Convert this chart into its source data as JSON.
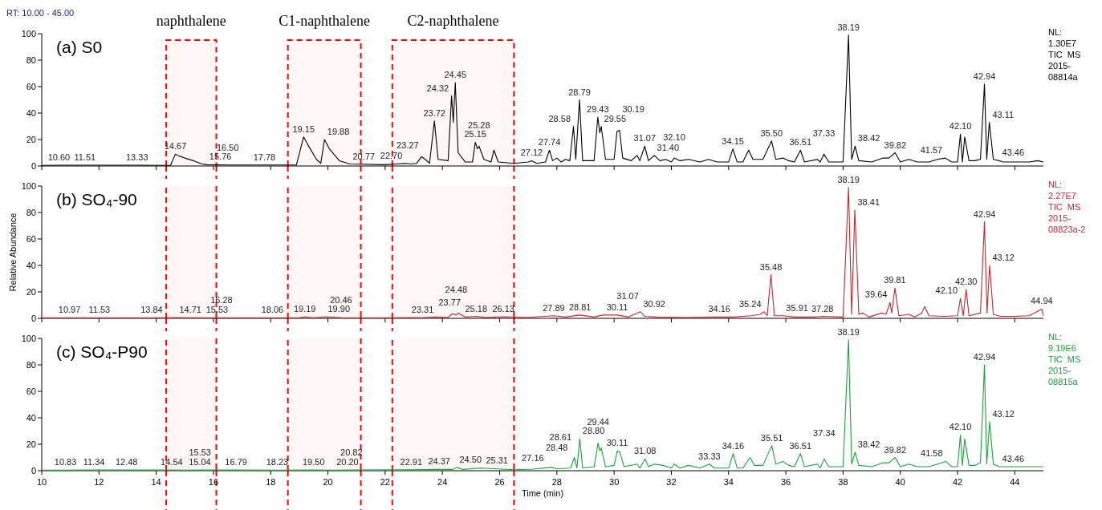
{
  "chart_data": [
    {
      "type": "line",
      "title": "(a) S0",
      "annotations": [
        "RT: 10.00 - 45.00",
        "NL:\n1.30E7\nTIC  MS\n2015-\n08814a",
        {
          "text": "10.60",
          "x": 10.6,
          "y": 0.6
        },
        {
          "text": "11.51",
          "x": 11.51,
          "y": 0.6
        },
        {
          "text": "13.33",
          "x": 13.33,
          "y": 0.6
        },
        {
          "text": "14.67",
          "x": 14.67,
          "y": 9
        },
        {
          "text": "15.76",
          "x": 15.76,
          "y": 1
        },
        {
          "text": "16.50",
          "x": 16.5,
          "y": 0.8
        },
        {
          "text": "17.78",
          "x": 17.78,
          "y": 0.8
        },
        {
          "text": "19.15",
          "x": 19.15,
          "y": 22
        },
        {
          "text": "19.88",
          "x": 19.88,
          "y": 20
        },
        {
          "text": "20.77",
          "x": 20.77,
          "y": 1.5
        },
        {
          "text": "22.70",
          "x": 22.7,
          "y": 2
        },
        {
          "text": "23.27",
          "x": 23.27,
          "y": 7
        },
        {
          "text": "23.72",
          "x": 23.72,
          "y": 34
        },
        {
          "text": "24.32",
          "x": 24.32,
          "y": 53
        },
        {
          "text": "24.45",
          "x": 24.45,
          "y": 63
        },
        {
          "text": "25.15",
          "x": 25.15,
          "y": 18
        },
        {
          "text": "25.28",
          "x": 25.28,
          "y": 15
        },
        {
          "text": "27.12",
          "x": 27.12,
          "y": 4
        },
        {
          "text": "27.74",
          "x": 27.74,
          "y": 12
        },
        {
          "text": "28.58",
          "x": 28.58,
          "y": 30
        },
        {
          "text": "28.79",
          "x": 28.79,
          "y": 50
        },
        {
          "text": "29.43",
          "x": 29.43,
          "y": 37
        },
        {
          "text": "29.55",
          "x": 29.55,
          "y": 30
        },
        {
          "text": "30.19",
          "x": 30.19,
          "y": 27
        },
        {
          "text": "31.07",
          "x": 31.07,
          "y": 15
        },
        {
          "text": "31.40",
          "x": 31.4,
          "y": 8
        },
        {
          "text": "32.10",
          "x": 32.1,
          "y": 6
        },
        {
          "text": "34.15",
          "x": 34.15,
          "y": 13
        },
        {
          "text": "35.50",
          "x": 35.5,
          "y": 19
        },
        {
          "text": "36.51",
          "x": 36.51,
          "y": 12
        },
        {
          "text": "37.33",
          "x": 37.33,
          "y": 9
        },
        {
          "text": "38.19",
          "x": 38.19,
          "y": 99
        },
        {
          "text": "38.42",
          "x": 38.42,
          "y": 15
        },
        {
          "text": "39.82",
          "x": 39.82,
          "y": 10
        },
        {
          "text": "41.57",
          "x": 41.57,
          "y": 6
        },
        {
          "text": "42.10",
          "x": 42.1,
          "y": 24
        },
        {
          "text": "42.94",
          "x": 42.94,
          "y": 62
        },
        {
          "text": "43.11",
          "x": 43.11,
          "y": 33
        },
        {
          "text": "43.46",
          "x": 43.46,
          "y": 4
        }
      ],
      "xlim": [
        10,
        45
      ],
      "xticks": [
        10,
        12,
        14,
        16,
        18,
        20,
        22,
        24,
        26,
        28,
        30,
        32,
        34,
        36,
        38,
        40,
        42,
        44
      ],
      "ylim": [
        0,
        100
      ],
      "yticks": [
        0,
        20,
        40,
        60,
        80,
        100
      ],
      "tick_labels": "y",
      "bands": [
        {
          "axis": "x",
          "from": 14.35,
          "to": 16.1,
          "label": "naphthalene",
          "color": "#ff0000"
        },
        {
          "axis": "x",
          "from": 18.6,
          "to": 21.15,
          "label": "C1-naphthalene",
          "color": "#ff0000"
        },
        {
          "axis": "x",
          "from": 22.25,
          "to": 26.5,
          "label": "C2-naphthalene",
          "color": "#ff0000"
        }
      ],
      "x": [
        10,
        10.6,
        11.51,
        13.33,
        14.5,
        14.67,
        14.8,
        15,
        15.3,
        15.6,
        15.76,
        16.5,
        17.78,
        18.9,
        19.15,
        19.3,
        19.6,
        19.75,
        19.88,
        20.05,
        20.4,
        20.77,
        22,
        22.7,
        22.9,
        23.1,
        23.27,
        23.4,
        23.55,
        23.72,
        23.85,
        24.2,
        24.32,
        24.38,
        24.45,
        24.55,
        24.8,
        25.05,
        25.15,
        25.22,
        25.28,
        25.45,
        25.7,
        25.8,
        25.95,
        26.5,
        27,
        27.12,
        27.3,
        27.6,
        27.74,
        27.85,
        28,
        28.15,
        28.3,
        28.45,
        28.58,
        28.66,
        28.79,
        28.9,
        29.3,
        29.43,
        29.5,
        29.55,
        29.7,
        30,
        30.1,
        30.19,
        30.3,
        30.6,
        30.8,
        30.9,
        31.07,
        31.2,
        31.4,
        31.6,
        31.8,
        32,
        32.1,
        32.3,
        32.6,
        33,
        33.3,
        33.6,
        34,
        34.15,
        34.3,
        34.5,
        34.7,
        34.85,
        35.2,
        35.5,
        35.65,
        35.9,
        36.1,
        36.3,
        36.51,
        36.65,
        37.1,
        37.2,
        37.33,
        37.5,
        38,
        38.19,
        38.3,
        38.42,
        38.55,
        39,
        39.4,
        39.6,
        39.82,
        40,
        40.3,
        40.6,
        41,
        41.3,
        41.57,
        41.8,
        42,
        42.1,
        42.17,
        42.25,
        42.4,
        42.6,
        42.8,
        42.94,
        43.02,
        43.11,
        43.25,
        43.46,
        43.6,
        44,
        44.5,
        44.8,
        45
      ],
      "series": [
        {
          "color": "#000000",
          "values": [
            0.5,
            0.6,
            0.6,
            0.6,
            0.5,
            9,
            7.5,
            6,
            4,
            1.5,
            1,
            0.8,
            0.8,
            0.8,
            22,
            16,
            5,
            2,
            20,
            13,
            4,
            1.5,
            1,
            2,
            1.5,
            2,
            7,
            5,
            2,
            34,
            5,
            4,
            53,
            33,
            63,
            10,
            3,
            3,
            18,
            13,
            15,
            5,
            3,
            12,
            3,
            2,
            3,
            4,
            2,
            3,
            12,
            4,
            6,
            3,
            5,
            4,
            30,
            5,
            50,
            4,
            4,
            37,
            25,
            30,
            5,
            5,
            26,
            27,
            6,
            4,
            8,
            4,
            15,
            4,
            8,
            4,
            5,
            3,
            6,
            4,
            5,
            3,
            5,
            3,
            3,
            13,
            3,
            3,
            12,
            5,
            5,
            19,
            5,
            6,
            4,
            3,
            12,
            3,
            5,
            3,
            9,
            3,
            3,
            99,
            5,
            15,
            4,
            3,
            6,
            6,
            10,
            3,
            5,
            3,
            3,
            5,
            6,
            3,
            3,
            24,
            3,
            22,
            4,
            4,
            5,
            62,
            5,
            33,
            5,
            4,
            3,
            3,
            3,
            4,
            3
          ]
        }
      ]
    },
    {
      "type": "line",
      "title": "(b) SO₄-90",
      "ylabel": "Relative Abundance",
      "annotations": [
        "NL:\n2.27E7\nTIC  MS\n2015-\n08823a-2",
        {
          "text": "10.97",
          "x": 10.97,
          "y": 0.5
        },
        {
          "text": "11.53",
          "x": 11.53,
          "y": 0.5
        },
        {
          "text": "13.84",
          "x": 13.84,
          "y": 0.5
        },
        {
          "text": "14.71",
          "x": 14.71,
          "y": 0.6
        },
        {
          "text": "15.53",
          "x": 15.53,
          "y": 0.5
        },
        {
          "text": "16.28",
          "x": 16.28,
          "y": 0.5
        },
        {
          "text": "18.06",
          "x": 18.06,
          "y": 0.5
        },
        {
          "text": "19.19",
          "x": 19.19,
          "y": 1.2
        },
        {
          "text": "19.90",
          "x": 19.9,
          "y": 1.2
        },
        {
          "text": "20.46",
          "x": 20.46,
          "y": 0.6
        },
        {
          "text": "23.31",
          "x": 23.31,
          "y": 0.6
        },
        {
          "text": "23.77",
          "x": 23.77,
          "y": 1
        },
        {
          "text": "24.48",
          "x": 24.48,
          "y": 2.5
        },
        {
          "text": "25.18",
          "x": 25.18,
          "y": 1.5
        },
        {
          "text": "26.13",
          "x": 26.13,
          "y": 1.2
        },
        {
          "text": "27.89",
          "x": 27.89,
          "y": 2
        },
        {
          "text": "28.81",
          "x": 28.81,
          "y": 2.5
        },
        {
          "text": "30.11",
          "x": 30.11,
          "y": 2.5
        },
        {
          "text": "30.92",
          "x": 30.92,
          "y": 5
        },
        {
          "text": "31.07",
          "x": 31.07,
          "y": 1.5
        },
        {
          "text": "34.16",
          "x": 34.16,
          "y": 1
        },
        {
          "text": "35.24",
          "x": 35.24,
          "y": 5
        },
        {
          "text": "35.48",
          "x": 35.48,
          "y": 33
        },
        {
          "text": "35.91",
          "x": 35.91,
          "y": 2
        },
        {
          "text": "37.28",
          "x": 37.28,
          "y": 1.5
        },
        {
          "text": "38.19",
          "x": 38.19,
          "y": 99
        },
        {
          "text": "38.41",
          "x": 38.41,
          "y": 82
        },
        {
          "text": "39.64",
          "x": 39.64,
          "y": 12
        },
        {
          "text": "39.81",
          "x": 39.81,
          "y": 23
        },
        {
          "text": "42.10",
          "x": 42.1,
          "y": 15
        },
        {
          "text": "42.30",
          "x": 42.3,
          "y": 22
        },
        {
          "text": "42.94",
          "x": 42.94,
          "y": 73
        },
        {
          "text": "43.12",
          "x": 43.12,
          "y": 40
        },
        {
          "text": "44.94",
          "x": 44.94,
          "y": 7
        }
      ],
      "xlim": [
        10,
        45
      ],
      "xticks": [
        10,
        12,
        14,
        16,
        18,
        20,
        22,
        24,
        26,
        28,
        30,
        32,
        34,
        36,
        38,
        40,
        42,
        44
      ],
      "ylim": [
        0,
        100
      ],
      "yticks": [
        0,
        20,
        40,
        60,
        80,
        100
      ],
      "tick_labels": "y",
      "bands": [
        {
          "axis": "x",
          "from": 14.35,
          "to": 16.1,
          "color": "#ff0000"
        },
        {
          "axis": "x",
          "from": 18.6,
          "to": 21.15,
          "color": "#ff0000"
        },
        {
          "axis": "x",
          "from": 22.25,
          "to": 26.5,
          "color": "#ff0000"
        }
      ],
      "x": [
        10,
        10.97,
        11.53,
        13.84,
        14.71,
        15.53,
        16.28,
        18.06,
        19,
        19.19,
        19.5,
        19.9,
        20.46,
        22,
        23.31,
        23.77,
        24.2,
        24.35,
        24.48,
        24.55,
        24.8,
        25.18,
        25.5,
        26.13,
        27,
        27.89,
        28.3,
        28.81,
        29.3,
        29.6,
        30.11,
        30.5,
        30.92,
        31.07,
        31.5,
        32.5,
        33.5,
        34.16,
        34.8,
        35.1,
        35.24,
        35.35,
        35.48,
        35.6,
        35.91,
        36.3,
        37,
        37.28,
        38,
        38.19,
        38.3,
        38.41,
        38.55,
        38.7,
        38.9,
        39.35,
        39.5,
        39.64,
        39.7,
        39.81,
        39.95,
        40.3,
        40.5,
        40.75,
        40.85,
        41,
        41.5,
        42,
        42.1,
        42.2,
        42.3,
        42.4,
        42.8,
        42.94,
        43.03,
        43.12,
        43.25,
        43.5,
        44,
        44.5,
        44.94,
        45
      ],
      "series": [
        {
          "color": "#c0282d",
          "values": [
            0.5,
            0.5,
            0.5,
            0.5,
            0.6,
            0.5,
            0.5,
            0.5,
            0.5,
            1.2,
            0.5,
            1.2,
            0.6,
            0.5,
            0.6,
            1,
            0.8,
            3.5,
            2.5,
            4,
            1,
            1.5,
            0.7,
            1.2,
            0.8,
            2,
            1,
            2.5,
            1,
            2.5,
            2.5,
            1,
            5,
            1.5,
            1,
            0.8,
            1,
            1,
            2,
            3,
            5,
            2,
            33,
            2,
            2,
            1,
            1,
            1.5,
            1,
            99,
            3,
            82,
            3,
            4,
            1,
            4,
            3,
            12,
            4,
            23,
            2,
            3,
            1,
            4,
            9,
            2,
            1.5,
            2,
            15,
            2,
            22,
            2,
            4,
            73,
            4,
            40,
            3,
            1.5,
            1.5,
            2,
            7,
            2
          ]
        }
      ]
    },
    {
      "type": "line",
      "title": "(c) SO₄-P90",
      "xlabel": "Time (min)",
      "annotations": [
        "NL:\n9.19E6\nTIC  MS\n2015-\n08815a",
        {
          "text": "10.83",
          "x": 10.83,
          "y": 0.5
        },
        {
          "text": "11.34",
          "x": 11.34,
          "y": 0.6
        },
        {
          "text": "12.48",
          "x": 12.48,
          "y": 0.6
        },
        {
          "text": "14.54",
          "x": 14.54,
          "y": 0.6
        },
        {
          "text": "15.04",
          "x": 15.04,
          "y": 0.5
        },
        {
          "text": "15.53",
          "x": 15.53,
          "y": 0.6
        },
        {
          "text": "16.79",
          "x": 16.79,
          "y": 0.6
        },
        {
          "text": "18.23",
          "x": 18.23,
          "y": 0.5
        },
        {
          "text": "19.50",
          "x": 19.5,
          "y": 0.6
        },
        {
          "text": "20.20",
          "x": 20.2,
          "y": 0.5
        },
        {
          "text": "20.82",
          "x": 20.82,
          "y": 0.6
        },
        {
          "text": "22.91",
          "x": 22.91,
          "y": 0.7
        },
        {
          "text": "24.37",
          "x": 24.37,
          "y": 1
        },
        {
          "text": "24.50",
          "x": 24.5,
          "y": 2.5
        },
        {
          "text": "25.31",
          "x": 25.31,
          "y": 2
        },
        {
          "text": "27.16",
          "x": 27.16,
          "y": 1.2
        },
        {
          "text": "28.48",
          "x": 28.48,
          "y": 2
        },
        {
          "text": "28.61",
          "x": 28.61,
          "y": 10
        },
        {
          "text": "28.80",
          "x": 28.8,
          "y": 24
        },
        {
          "text": "29.44",
          "x": 29.44,
          "y": 21
        },
        {
          "text": "30.11",
          "x": 30.11,
          "y": 15
        },
        {
          "text": "31.08",
          "x": 31.08,
          "y": 9
        },
        {
          "text": "33.33",
          "x": 33.33,
          "y": 5
        },
        {
          "text": "34.16",
          "x": 34.16,
          "y": 13
        },
        {
          "text": "35.51",
          "x": 35.51,
          "y": 19
        },
        {
          "text": "36.51",
          "x": 36.51,
          "y": 13
        },
        {
          "text": "37.34",
          "x": 37.34,
          "y": 9
        },
        {
          "text": "38.19",
          "x": 38.19,
          "y": 99
        },
        {
          "text": "38.42",
          "x": 38.42,
          "y": 14
        },
        {
          "text": "39.82",
          "x": 39.82,
          "y": 10
        },
        {
          "text": "41.58",
          "x": 41.58,
          "y": 7
        },
        {
          "text": "42.10",
          "x": 42.1,
          "y": 27
        },
        {
          "text": "42.94",
          "x": 42.94,
          "y": 80
        },
        {
          "text": "43.12",
          "x": 43.12,
          "y": 37
        },
        {
          "text": "43.46",
          "x": 43.46,
          "y": 3
        }
      ],
      "xlim": [
        10,
        45
      ],
      "xticks": [
        10,
        12,
        14,
        16,
        18,
        20,
        22,
        24,
        26,
        28,
        30,
        32,
        34,
        36,
        38,
        40,
        42,
        44
      ],
      "ylim": [
        0,
        100
      ],
      "yticks": [
        0,
        20,
        40,
        60,
        80,
        100
      ],
      "bands": [
        {
          "axis": "x",
          "from": 14.35,
          "to": 16.1,
          "color": "#ff0000"
        },
        {
          "axis": "x",
          "from": 18.6,
          "to": 21.15,
          "color": "#ff0000"
        },
        {
          "axis": "x",
          "from": 22.25,
          "to": 26.5,
          "color": "#ff0000"
        }
      ],
      "x": [
        10,
        10.83,
        11.34,
        12.48,
        14.54,
        15.04,
        15.53,
        16.79,
        18.23,
        19.5,
        20.2,
        20.82,
        22.91,
        23.8,
        24.37,
        24.5,
        24.7,
        25.31,
        25.8,
        26.5,
        27.16,
        27.8,
        28,
        28.48,
        28.61,
        28.7,
        28.8,
        28.9,
        29.3,
        29.44,
        29.5,
        29.55,
        29.7,
        30,
        30.11,
        30.2,
        30.35,
        30.8,
        30.9,
        31.08,
        31.2,
        31.4,
        31.7,
        32,
        32.1,
        32.3,
        32.6,
        33,
        33.33,
        33.5,
        34,
        34.16,
        34.3,
        34.5,
        34.75,
        34.9,
        35.2,
        35.51,
        35.65,
        35.9,
        36.1,
        36.3,
        36.51,
        36.65,
        37.1,
        37.2,
        37.34,
        37.5,
        38,
        38.19,
        38.3,
        38.42,
        38.55,
        39,
        39.4,
        39.6,
        39.82,
        40,
        40.3,
        40.6,
        41,
        41.3,
        41.58,
        41.8,
        42,
        42.1,
        42.17,
        42.25,
        42.4,
        42.6,
        42.8,
        42.94,
        43.02,
        43.12,
        43.25,
        43.46,
        43.6,
        44,
        44.5,
        45
      ],
      "series": [
        {
          "color": "#1aa33a",
          "values": [
            0.5,
            0.5,
            0.6,
            0.6,
            0.6,
            0.5,
            0.6,
            0.6,
            0.5,
            0.6,
            0.5,
            0.6,
            0.7,
            1,
            1,
            2.5,
            1,
            2,
            1.5,
            0.8,
            1.2,
            2.5,
            1.5,
            2,
            10,
            2,
            24,
            2,
            3,
            21,
            15,
            17,
            3,
            4,
            15,
            14,
            3,
            5,
            2,
            9,
            3,
            5,
            4,
            2,
            5,
            2,
            4,
            2,
            5,
            2,
            2,
            13,
            2,
            2,
            10,
            4,
            4,
            19,
            5,
            7,
            4,
            3,
            13,
            3,
            5,
            2,
            9,
            3,
            3,
            99,
            5,
            14,
            4,
            3,
            6,
            6,
            10,
            3,
            5,
            3,
            3,
            5,
            7,
            3,
            3,
            27,
            4,
            24,
            4,
            4,
            6,
            80,
            5,
            37,
            5,
            3,
            3,
            3,
            3,
            3
          ]
        }
      ]
    }
  ]
}
